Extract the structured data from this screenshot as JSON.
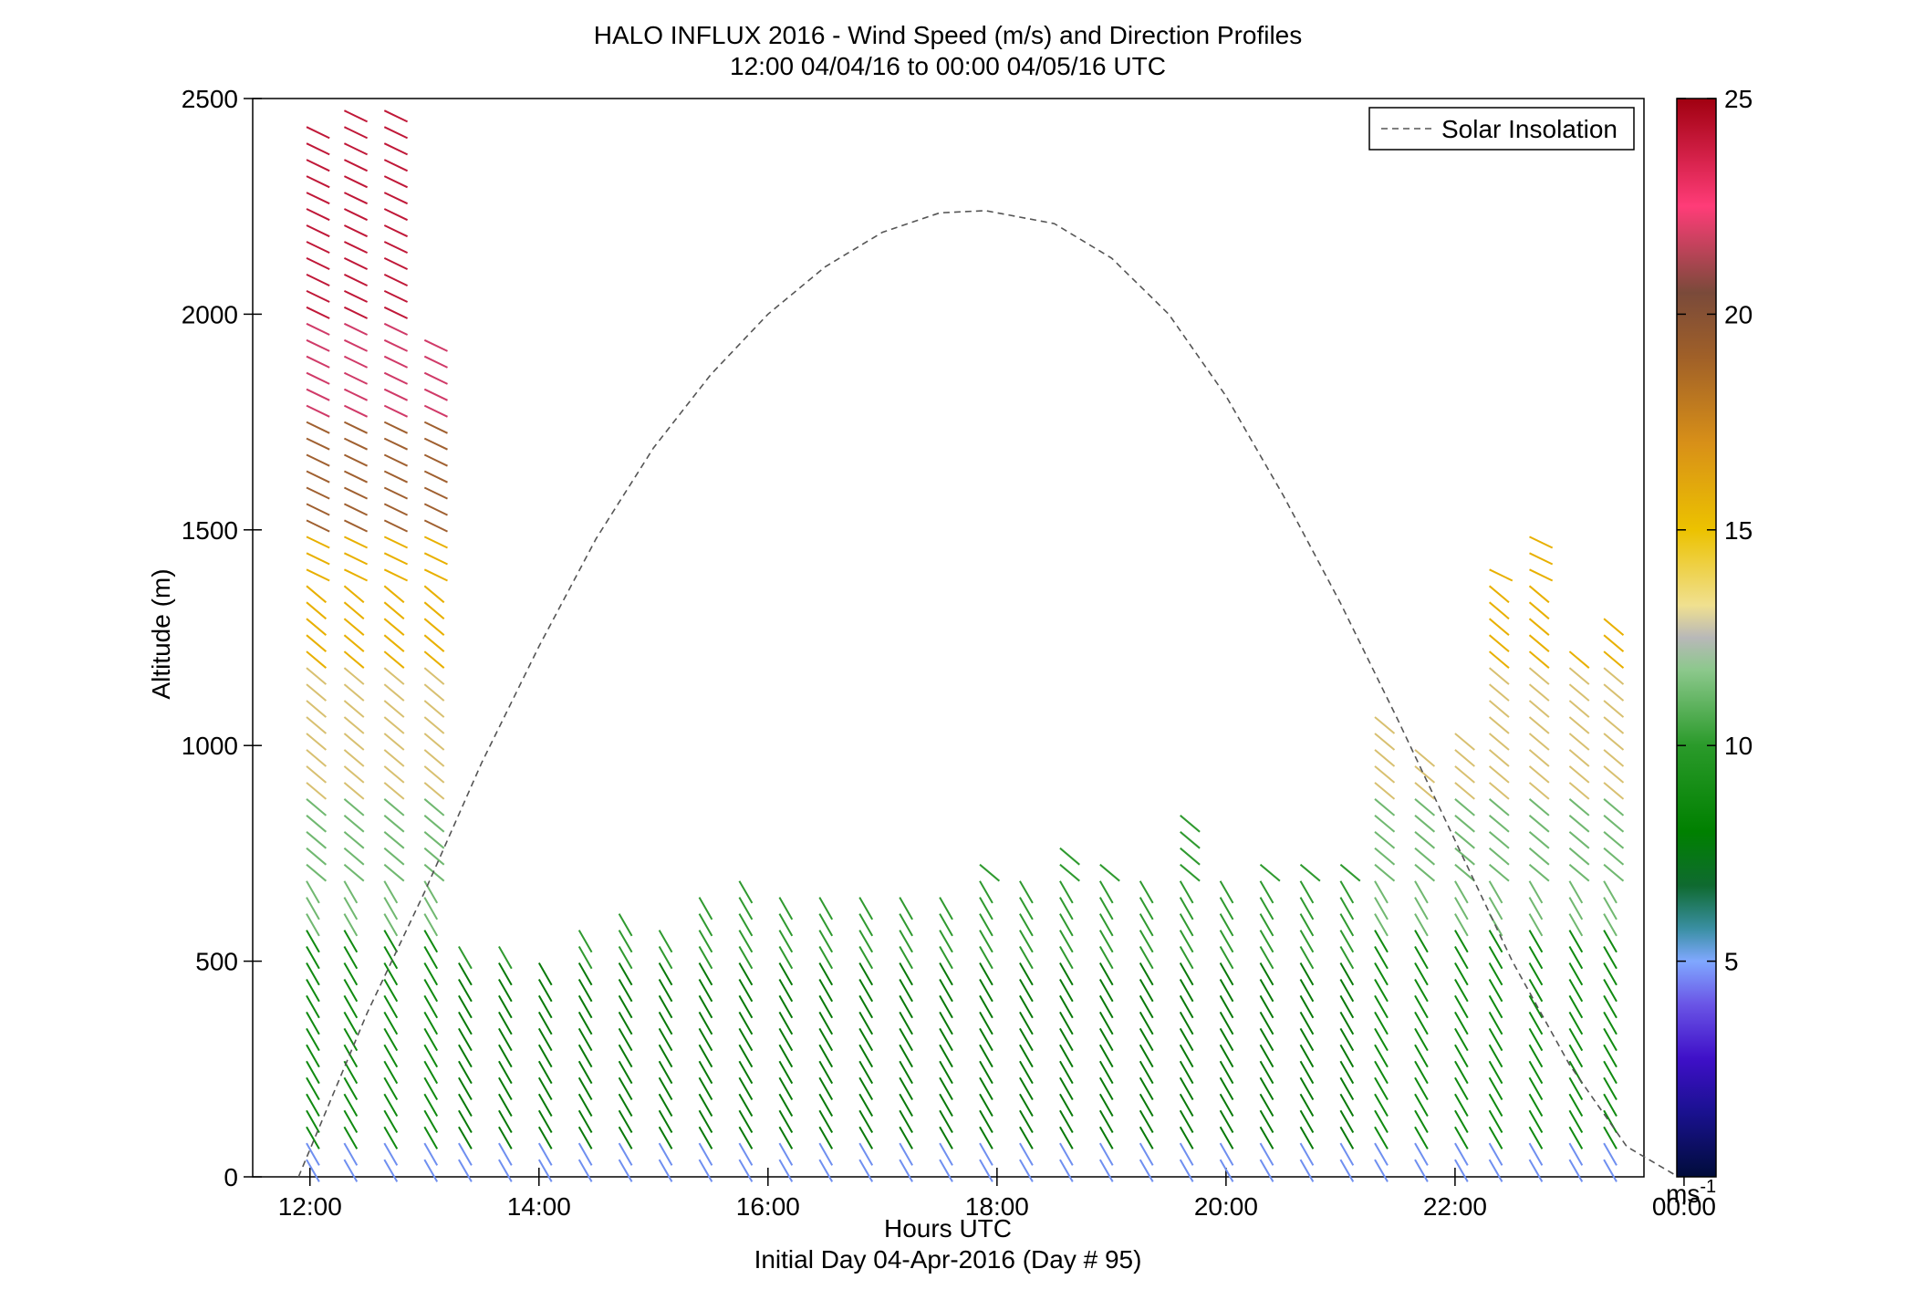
{
  "chart_data": {
    "type": "scatter",
    "title": "HALO INFLUX 2016 - Wind Speed (m/s) and Direction Profiles",
    "subtitle": "12:00 04/04/16 to 00:00 04/05/16  UTC",
    "xlabel": "Hours UTC",
    "xlabel2": "Initial Day 04-Apr-2016 (Day # 95)",
    "ylabel": "Altitude (m)",
    "xlim": [
      11.5,
      23.65
    ],
    "ylim": [
      0,
      2500
    ],
    "x_ticks": [
      12,
      14,
      16,
      18,
      20,
      22,
      24
    ],
    "x_tick_labels": [
      "12:00",
      "14:00",
      "16:00",
      "18:00",
      "20:00",
      "22:00",
      "00:00"
    ],
    "y_ticks": [
      0,
      500,
      1000,
      1500,
      2000,
      2500
    ],
    "y_tick_labels": [
      "0",
      "500",
      "1000",
      "1500",
      "2000",
      "2500"
    ],
    "legend": {
      "label": "Solar Insolation",
      "position": "top-right"
    },
    "colorbar": {
      "min": 0,
      "max": 25,
      "ticks": [
        5,
        10,
        15,
        20,
        25
      ],
      "tick_labels": [
        "5",
        "10",
        "15",
        "20",
        "25"
      ],
      "unit_label": "ms",
      "unit_exponent": "-1"
    },
    "solar_insolation": {
      "x": [
        11.9,
        12.5,
        13.0,
        13.5,
        14.0,
        14.5,
        15.0,
        15.5,
        16.0,
        16.5,
        17.0,
        17.5,
        17.9,
        18.5,
        19.0,
        19.5,
        20.0,
        20.5,
        21.0,
        21.5,
        22.0,
        22.5,
        23.0,
        23.5,
        23.95
      ],
      "y": [
        0,
        380,
        660,
        960,
        1230,
        1480,
        1690,
        1860,
        2000,
        2110,
        2190,
        2235,
        2240,
        2210,
        2130,
        2000,
        1810,
        1580,
        1330,
        1060,
        780,
        500,
        260,
        70,
        0
      ]
    },
    "profiles": [
      {
        "time": 11.97,
        "top": 2460
      },
      {
        "time": 12.3,
        "top": 2500
      },
      {
        "time": 12.65,
        "top": 2500
      },
      {
        "time": 13.0,
        "top": 1960
      },
      {
        "time": 13.3,
        "top": 560
      },
      {
        "time": 13.65,
        "top": 540
      },
      {
        "time": 14.0,
        "top": 530
      },
      {
        "time": 14.35,
        "top": 590
      },
      {
        "time": 14.7,
        "top": 630
      },
      {
        "time": 15.05,
        "top": 600
      },
      {
        "time": 15.4,
        "top": 660
      },
      {
        "time": 15.75,
        "top": 700
      },
      {
        "time": 16.1,
        "top": 660
      },
      {
        "time": 16.45,
        "top": 670
      },
      {
        "time": 16.8,
        "top": 660
      },
      {
        "time": 17.15,
        "top": 670
      },
      {
        "time": 17.5,
        "top": 670
      },
      {
        "time": 17.85,
        "top": 730
      },
      {
        "time": 18.2,
        "top": 700
      },
      {
        "time": 18.55,
        "top": 790
      },
      {
        "time": 18.9,
        "top": 730
      },
      {
        "time": 19.25,
        "top": 720
      },
      {
        "time": 19.6,
        "top": 870
      },
      {
        "time": 19.95,
        "top": 700
      },
      {
        "time": 20.3,
        "top": 730
      },
      {
        "time": 20.65,
        "top": 730
      },
      {
        "time": 21.0,
        "top": 730
      },
      {
        "time": 21.3,
        "top": 1090
      },
      {
        "time": 21.65,
        "top": 1000
      },
      {
        "time": 22.0,
        "top": 1040
      },
      {
        "time": 22.3,
        "top": 1410
      },
      {
        "time": 22.65,
        "top": 1520
      },
      {
        "time": 23.0,
        "top": 1220
      },
      {
        "time": 23.3,
        "top": 1320
      }
    ]
  }
}
